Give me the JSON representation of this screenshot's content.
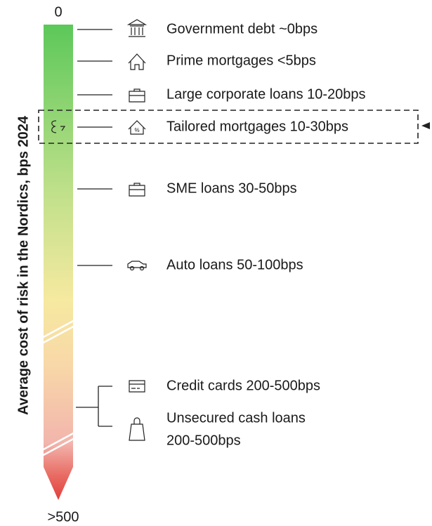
{
  "axis_label": "Average cost of risk in the Nordics, bps 2024",
  "top_label": "0",
  "bottom_label": ">500",
  "items": [
    {
      "lines": [
        "Government debt ~0bps"
      ]
    },
    {
      "lines": [
        "Prime mortgages <5bps"
      ]
    },
    {
      "lines": [
        "Large corporate loans 10-20bps"
      ]
    },
    {
      "lines": [
        "Tailored mortgages 10-30bps"
      ]
    },
    {
      "lines": [
        "SME loans 30-50bps"
      ]
    },
    {
      "lines": [
        "Auto loans 50-100bps"
      ]
    },
    {
      "lines": [
        "Credit cards 200-500bps"
      ]
    },
    {
      "lines": [
        "Unsecured cash loans",
        "200-500bps"
      ]
    }
  ]
}
